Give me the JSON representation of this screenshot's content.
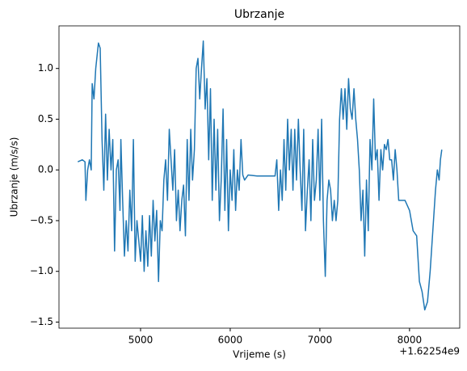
{
  "chart_data": {
    "type": "line",
    "title": "Ubrzanje",
    "x_label": "Vrijeme (s)",
    "y_label": "Ubrzanje (m/s/s)",
    "x_offset_label": "+1.62254e9",
    "xlim": [
      4090,
      8560
    ],
    "ylim": [
      -1.56,
      1.42
    ],
    "xticks": [
      5000,
      6000,
      7000,
      8000
    ],
    "yticks": [
      {
        "value": -1.5,
        "label": "−1.5"
      },
      {
        "value": -1.0,
        "label": "−1.0"
      },
      {
        "value": -0.5,
        "label": "−0.5"
      },
      {
        "value": 0.0,
        "label": "0.0"
      },
      {
        "value": 0.5,
        "label": "0.5"
      },
      {
        "value": 1.0,
        "label": "1.0"
      }
    ],
    "series": [
      {
        "color": "#1f77b4",
        "x": [
          4300,
          4350,
          4380,
          4390,
          4410,
          4430,
          4450,
          4460,
          4480,
          4500,
          4530,
          4550,
          4570,
          4590,
          4610,
          4630,
          4650,
          4670,
          4690,
          4710,
          4730,
          4750,
          4770,
          4780,
          4800,
          4820,
          4840,
          4860,
          4880,
          4900,
          4920,
          4940,
          4960,
          4980,
          5000,
          5020,
          5040,
          5060,
          5080,
          5100,
          5120,
          5140,
          5160,
          5180,
          5200,
          5220,
          5240,
          5260,
          5280,
          5300,
          5320,
          5340,
          5360,
          5380,
          5400,
          5420,
          5440,
          5460,
          5480,
          5500,
          5520,
          5540,
          5560,
          5580,
          5600,
          5620,
          5640,
          5660,
          5680,
          5700,
          5720,
          5740,
          5760,
          5780,
          5800,
          5820,
          5840,
          5860,
          5880,
          5900,
          5920,
          5940,
          5960,
          5980,
          6000,
          6020,
          6040,
          6060,
          6080,
          6100,
          6120,
          6140,
          6160,
          6200,
          6300,
          6400,
          6500,
          6520,
          6540,
          6560,
          6580,
          6600,
          6620,
          6640,
          6660,
          6680,
          6700,
          6720,
          6740,
          6760,
          6780,
          6800,
          6820,
          6840,
          6860,
          6880,
          6900,
          6920,
          6940,
          6960,
          6980,
          7000,
          7020,
          7040,
          7060,
          7080,
          7100,
          7120,
          7140,
          7160,
          7180,
          7200,
          7220,
          7240,
          7260,
          7280,
          7300,
          7320,
          7340,
          7360,
          7380,
          7400,
          7420,
          7440,
          7460,
          7480,
          7500,
          7520,
          7540,
          7560,
          7580,
          7600,
          7620,
          7640,
          7660,
          7680,
          7700,
          7720,
          7740,
          7760,
          7780,
          7800,
          7820,
          7840,
          7860,
          7880,
          7900,
          7950,
          8000,
          8040,
          8080,
          8110,
          8140,
          8170,
          8200,
          8230,
          8260,
          8290,
          8310,
          8330,
          8345,
          8360
        ],
        "values": [
          0.08,
          0.1,
          0.08,
          -0.3,
          0.0,
          0.1,
          0.0,
          0.85,
          0.7,
          1.0,
          1.25,
          1.2,
          0.3,
          -0.2,
          0.55,
          -0.1,
          0.4,
          0.0,
          0.3,
          -0.8,
          0.0,
          0.1,
          -0.4,
          0.3,
          -0.3,
          -0.85,
          -0.5,
          -0.8,
          -0.2,
          -0.6,
          0.3,
          -0.9,
          -0.5,
          -0.7,
          -0.9,
          -0.45,
          -1.0,
          -0.6,
          -0.95,
          -0.45,
          -0.85,
          -0.3,
          -0.7,
          -0.4,
          -1.1,
          -0.5,
          -0.6,
          -0.1,
          0.1,
          -0.3,
          0.4,
          0.1,
          -0.2,
          0.2,
          -0.5,
          -0.2,
          -0.6,
          -0.3,
          -0.15,
          -0.65,
          0.3,
          -0.3,
          0.4,
          -0.1,
          0.2,
          1.0,
          1.1,
          0.7,
          1.0,
          1.27,
          0.6,
          0.9,
          0.1,
          0.8,
          -0.3,
          0.5,
          -0.2,
          0.4,
          -0.5,
          -0.1,
          0.6,
          -0.4,
          0.3,
          -0.6,
          0.0,
          -0.3,
          0.2,
          -0.4,
          0.0,
          -0.2,
          0.3,
          -0.05,
          -0.1,
          -0.05,
          -0.06,
          -0.06,
          -0.06,
          0.1,
          -0.4,
          0.0,
          -0.3,
          0.3,
          -0.2,
          0.5,
          0.0,
          0.4,
          -0.2,
          0.4,
          -0.1,
          0.5,
          0.0,
          -0.4,
          0.4,
          -0.6,
          -0.2,
          0.1,
          -0.5,
          0.3,
          -0.3,
          -0.1,
          0.4,
          -0.3,
          0.5,
          -0.5,
          -1.05,
          -0.3,
          -0.1,
          -0.2,
          -0.5,
          -0.3,
          -0.5,
          -0.3,
          0.5,
          0.8,
          0.5,
          0.8,
          0.4,
          0.9,
          0.6,
          0.5,
          0.8,
          0.5,
          0.3,
          0.0,
          -0.5,
          -0.2,
          -0.85,
          -0.1,
          -0.6,
          0.3,
          0.0,
          0.7,
          0.1,
          0.2,
          -0.3,
          0.2,
          0.0,
          0.25,
          0.2,
          0.3,
          0.1,
          0.1,
          -0.1,
          0.2,
          0.0,
          -0.3,
          -0.3,
          -0.3,
          -0.4,
          -0.6,
          -0.65,
          -1.1,
          -1.2,
          -1.38,
          -1.3,
          -1.0,
          -0.6,
          -0.2,
          0.0,
          -0.1,
          0.1,
          0.2
        ]
      }
    ]
  }
}
